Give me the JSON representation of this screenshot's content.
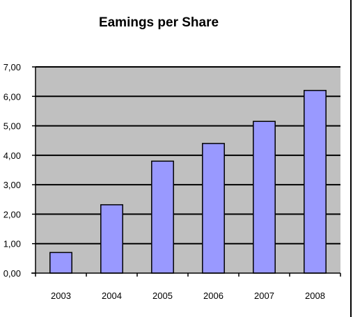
{
  "chart_data": {
    "type": "bar",
    "title": "Eamings per Share",
    "xlabel": "",
    "ylabel": "",
    "categories": [
      "2003",
      "2004",
      "2005",
      "2006",
      "2007",
      "2008"
    ],
    "values": [
      0.7,
      2.32,
      3.8,
      4.4,
      5.15,
      6.2
    ],
    "ylim": [
      0,
      7
    ],
    "ytick_values": [
      0,
      1,
      2,
      3,
      4,
      5,
      6,
      7
    ],
    "ytick_labels": [
      "0,00",
      "1,00",
      "2,00",
      "3,00",
      "4,00",
      "5,00",
      "6,00",
      "7,00"
    ],
    "grid": true,
    "legend": "none",
    "colors": {
      "bar_fill": "#9999ff",
      "bar_stroke": "#000000",
      "plot_background": "#c0c0c0",
      "gridline": "#000000",
      "frame_border": "#000000"
    }
  }
}
